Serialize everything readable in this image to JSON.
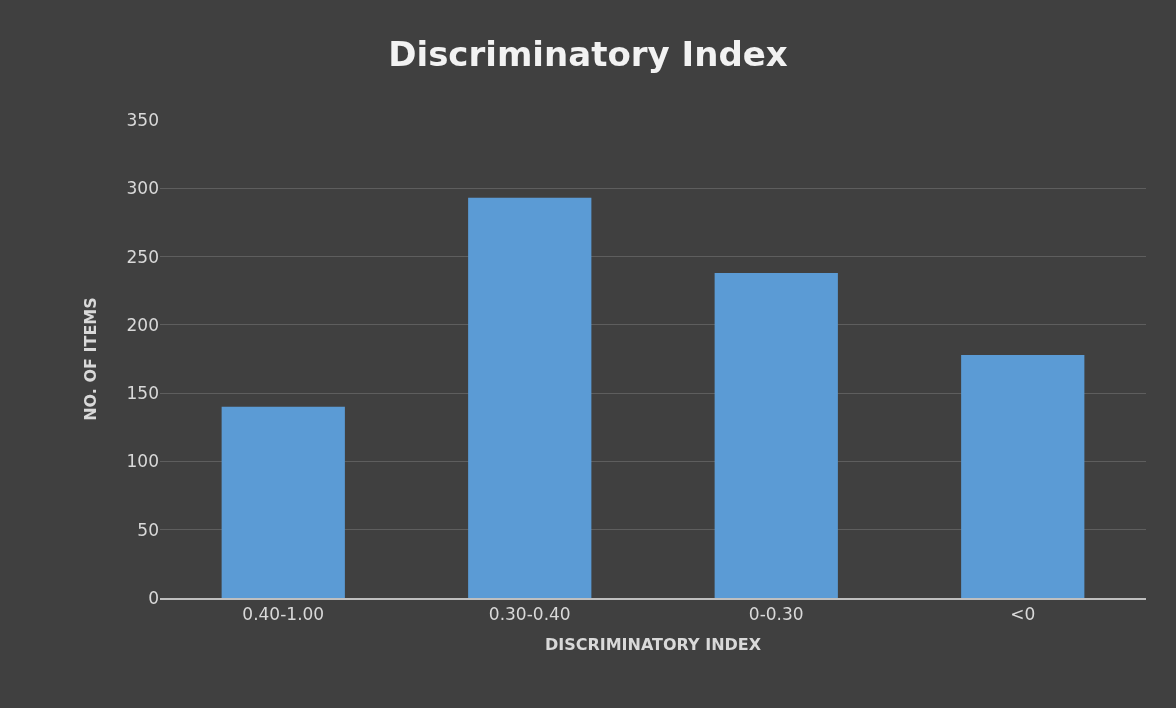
{
  "chart_data": {
    "type": "bar",
    "title": "Discriminatory Index",
    "xlabel": "DISCRIMINATORY INDEX",
    "ylabel": "NO. OF ITEMS",
    "categories": [
      "0.40-1.00",
      "0.30-0.40",
      "0-0.30",
      "<0"
    ],
    "values": [
      140,
      293,
      238,
      178
    ],
    "color": "#5b9bd5",
    "ylim": [
      0,
      350
    ],
    "yticks": [
      0,
      50,
      100,
      150,
      200,
      250,
      300,
      350
    ],
    "grid": "y"
  }
}
